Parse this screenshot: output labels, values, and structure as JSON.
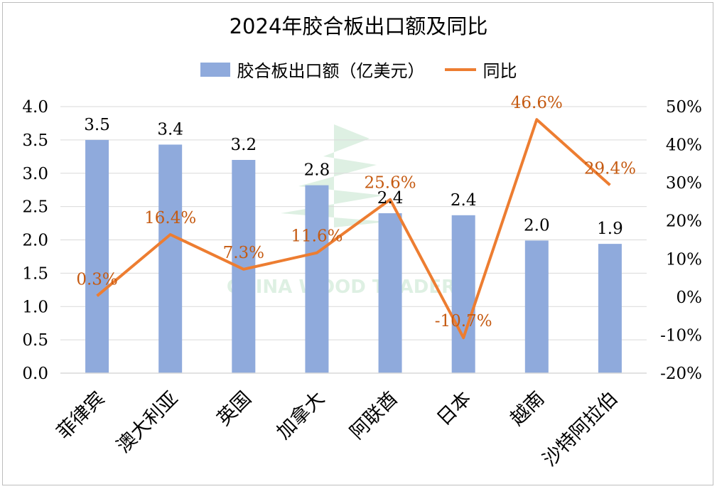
{
  "chart_data": {
    "type": "bar",
    "title": "2024年胶合板出口额及同比",
    "categories": [
      "菲律宾",
      "澳大利亚",
      "英国",
      "加拿大",
      "阿联酋",
      "日本",
      "越南",
      "沙特阿拉伯"
    ],
    "series": [
      {
        "name": "胶合板出口额（亿美元）",
        "type": "bar",
        "axis": "left",
        "color": "#8faadc",
        "values": [
          3.5,
          3.43,
          3.2,
          2.82,
          2.4,
          2.37,
          1.99,
          1.94
        ],
        "labels": [
          "3.5",
          "3.4",
          "3.2",
          "2.8",
          "2.4",
          "2.4",
          "2.0",
          "1.9"
        ]
      },
      {
        "name": "同比",
        "type": "line",
        "axis": "right",
        "color": "#ed7d31",
        "values": [
          0.3,
          16.4,
          7.3,
          11.6,
          25.6,
          -10.7,
          46.6,
          29.4
        ],
        "labels": [
          "0.3%",
          "16.4%",
          "7.3%",
          "11.6%",
          "25.6%",
          "-10.7%",
          "46.6%",
          "29.4%"
        ]
      }
    ],
    "y_left": {
      "ylim": [
        0,
        4
      ],
      "ticks": [
        0,
        0.5,
        1,
        1.5,
        2,
        2.5,
        3,
        3.5,
        4
      ],
      "tick_labels": [
        "0.0",
        "0.5",
        "1.0",
        "1.5",
        "2.0",
        "2.5",
        "3.0",
        "3.5",
        "4.0"
      ]
    },
    "y_right": {
      "ylim": [
        -20,
        50
      ],
      "ticks": [
        -20,
        -10,
        0,
        10,
        20,
        30,
        40,
        50
      ],
      "tick_labels": [
        "-20%",
        "-10%",
        "0%",
        "10%",
        "20%",
        "30%",
        "40%",
        "50%"
      ]
    },
    "xlabel": "",
    "ylabel": "",
    "grid": true,
    "legend_position": "top-center",
    "label_color": "#c55a11",
    "watermark": "CHINA WOOD TRADER"
  }
}
